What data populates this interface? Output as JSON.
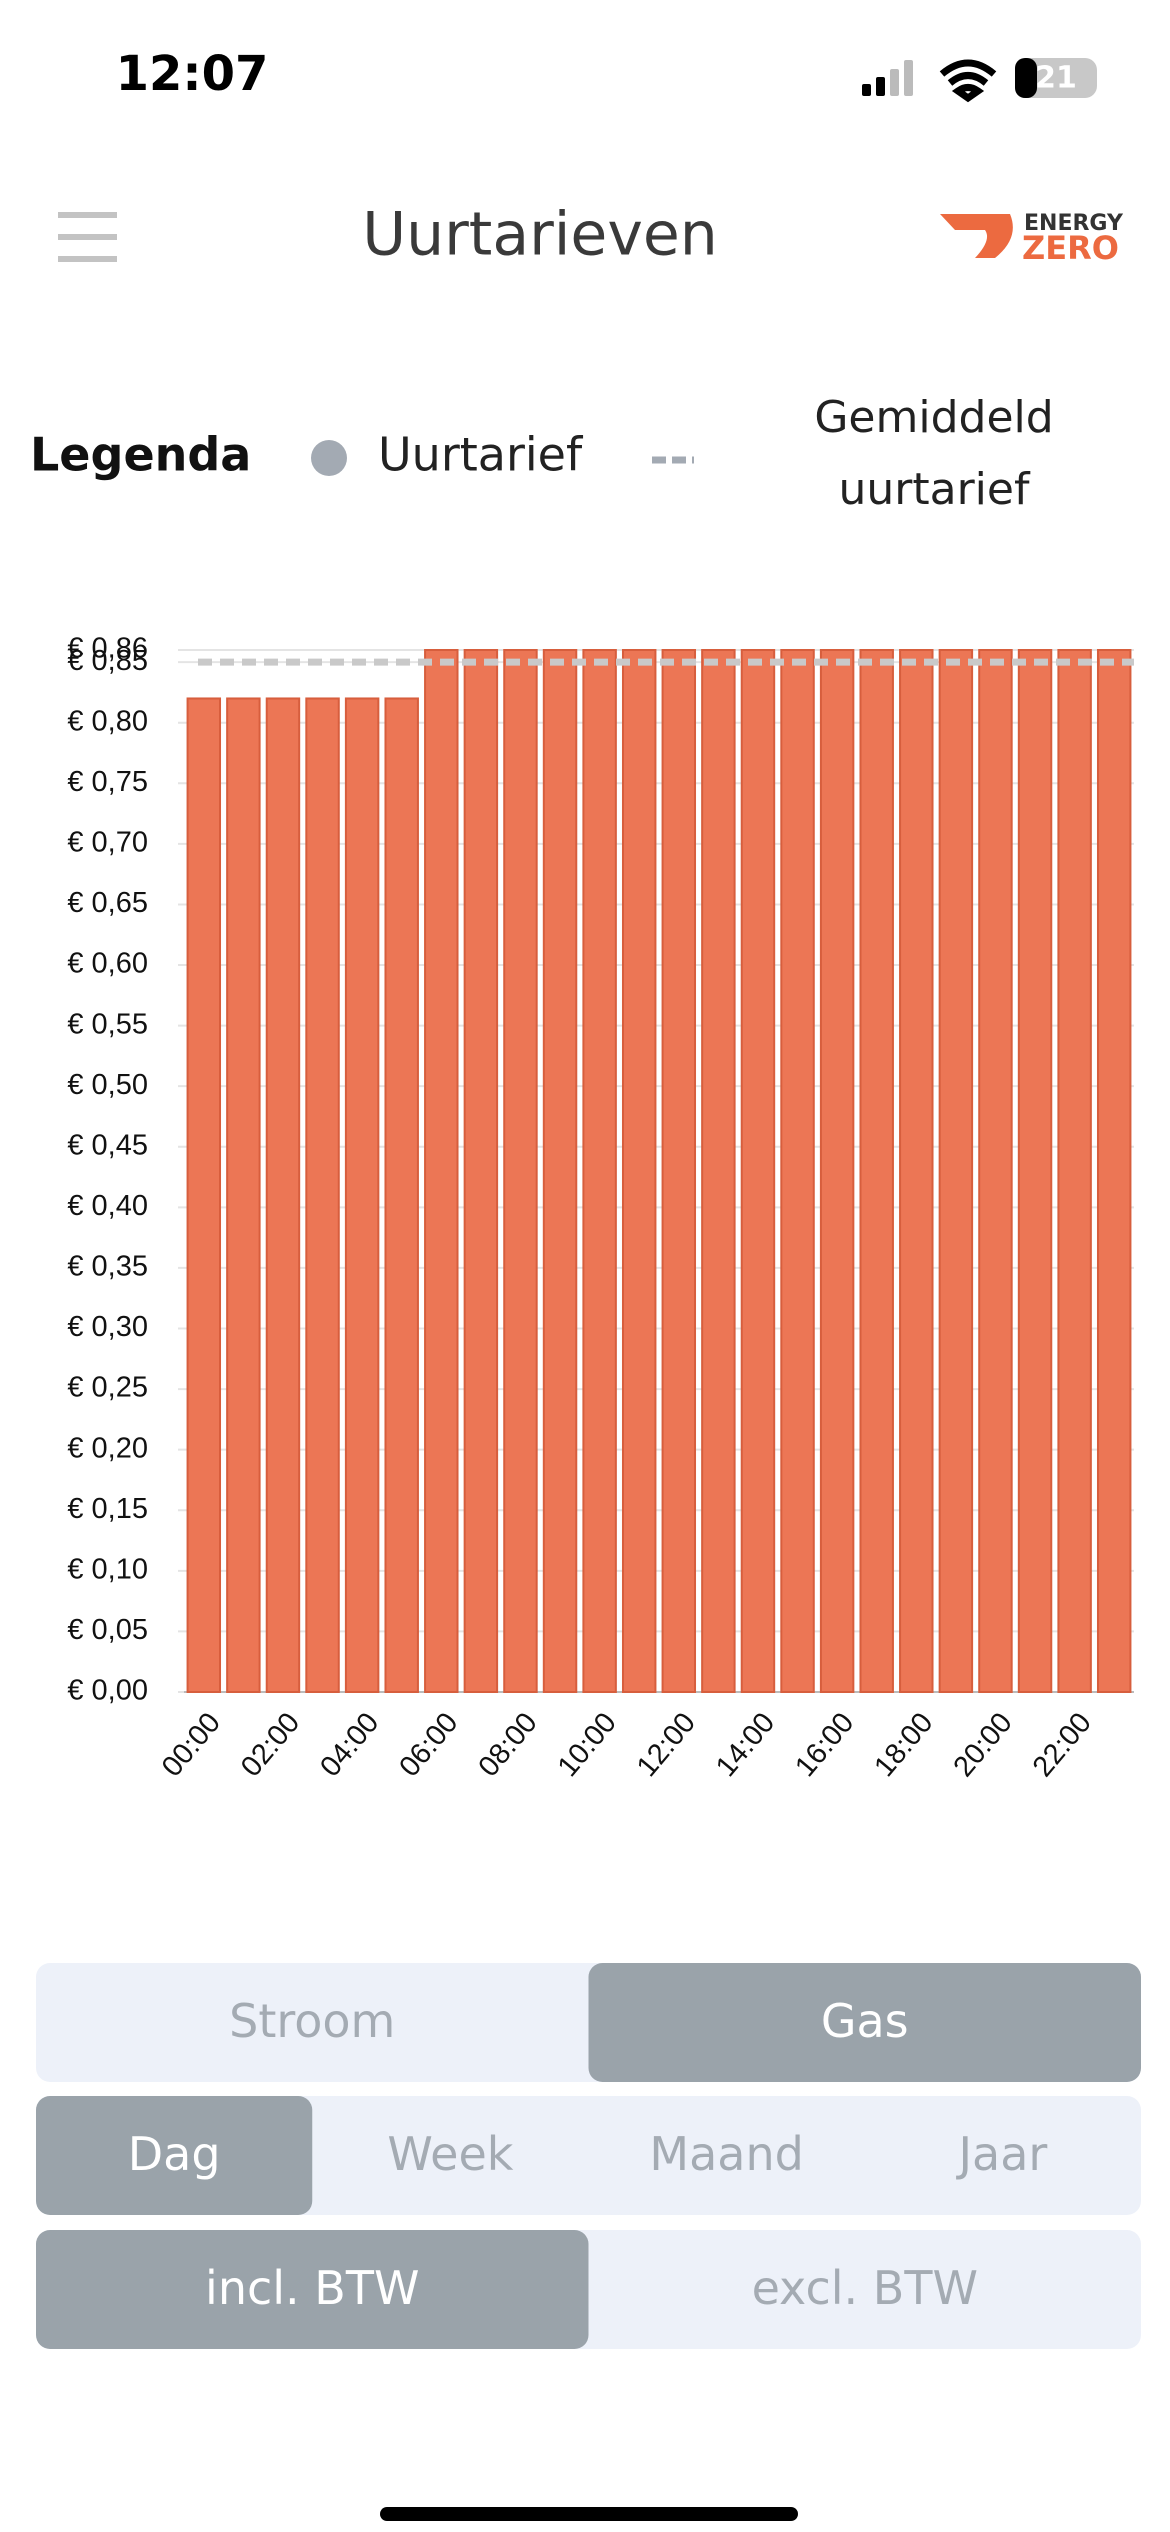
{
  "status_bar": {
    "time": "12:07",
    "battery": "21"
  },
  "header": {
    "title": "Uurtarieven",
    "logo_top": "ENERGY",
    "logo_bottom": "ZERO"
  },
  "legend": {
    "title": "Legenda",
    "bar_label": "Uurtarief",
    "line_label_1": "Gemiddeld",
    "line_label_2": "uurtarief"
  },
  "chart_data": {
    "type": "bar",
    "color": "#ec7655",
    "average": 0.85,
    "average_color": "#c9c9c9",
    "grid": true,
    "categories": [
      "00:00",
      null,
      "02:00",
      null,
      "04:00",
      null,
      "06:00",
      null,
      "08:00",
      null,
      "10:00",
      null,
      "12:00",
      null,
      "14:00",
      null,
      "16:00",
      null,
      "18:00",
      null,
      "20:00",
      null,
      "22:00",
      null
    ],
    "values": [
      0.82,
      0.82,
      0.82,
      0.82,
      0.82,
      0.82,
      0.86,
      0.86,
      0.86,
      0.86,
      0.86,
      0.86,
      0.86,
      0.86,
      0.86,
      0.86,
      0.86,
      0.86,
      0.86,
      0.86,
      0.86,
      0.86,
      0.86,
      0.86
    ],
    "ylim": [
      0,
      0.86
    ],
    "yticks": [
      {
        "value": 0,
        "label": "€ 0,00"
      },
      {
        "value": 0.05,
        "label": "€ 0,05"
      },
      {
        "value": 0.1,
        "label": "€ 0,10"
      },
      {
        "value": 0.15,
        "label": "€ 0,15"
      },
      {
        "value": 0.2,
        "label": "€ 0,20"
      },
      {
        "value": 0.25,
        "label": "€ 0,25"
      },
      {
        "value": 0.3,
        "label": "€ 0,30"
      },
      {
        "value": 0.35,
        "label": "€ 0,35"
      },
      {
        "value": 0.4,
        "label": "€ 0,40"
      },
      {
        "value": 0.45,
        "label": "€ 0,45"
      },
      {
        "value": 0.5,
        "label": "€ 0,50"
      },
      {
        "value": 0.55,
        "label": "€ 0,55"
      },
      {
        "value": 0.6,
        "label": "€ 0,60"
      },
      {
        "value": 0.65,
        "label": "€ 0,65"
      },
      {
        "value": 0.7,
        "label": "€ 0,70"
      },
      {
        "value": 0.75,
        "label": "€ 0,75"
      },
      {
        "value": 0.8,
        "label": "€ 0,80"
      },
      {
        "value": 0.85,
        "label": "€ 0,85"
      },
      {
        "value": 0.86,
        "label": "€ 0,86"
      }
    ]
  },
  "controls": {
    "energy": [
      "Stroom",
      "Gas"
    ],
    "period": [
      "Dag",
      "Week",
      "Maand",
      "Jaar"
    ],
    "tax": [
      "incl. BTW",
      "excl. BTW"
    ]
  }
}
